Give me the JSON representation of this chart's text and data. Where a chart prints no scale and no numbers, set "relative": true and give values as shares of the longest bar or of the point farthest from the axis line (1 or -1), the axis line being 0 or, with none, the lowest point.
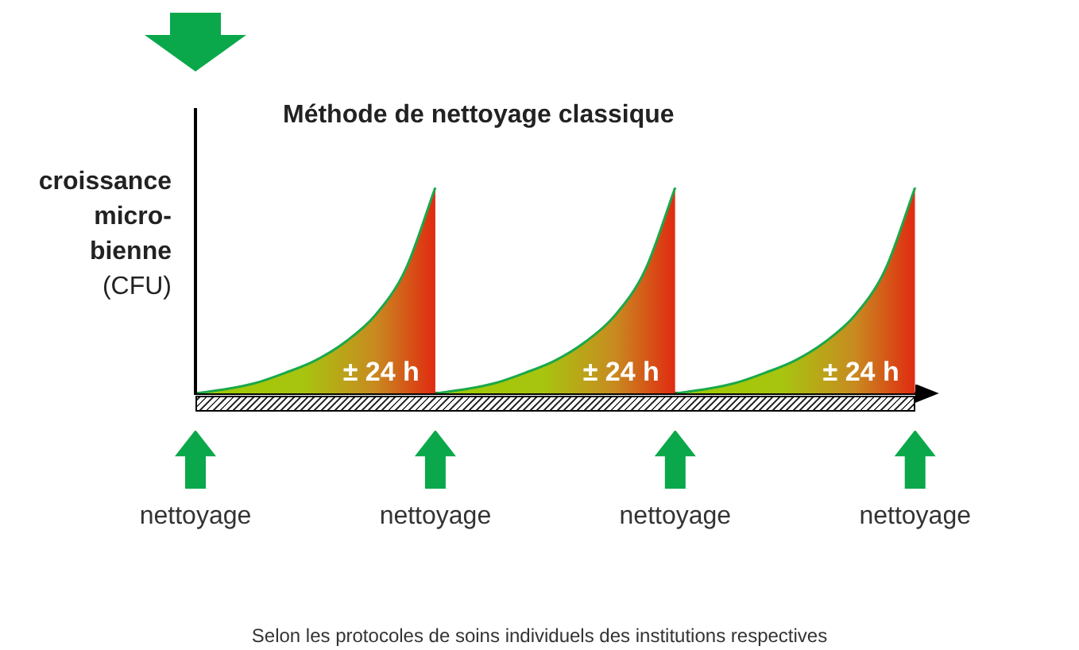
{
  "chart_data": {
    "type": "area",
    "title": "Méthode de nettoyage classique",
    "ylabel": "croissance micro-bienne (CFU)",
    "relative": true,
    "categories": [
      "nettoyage",
      null,
      null,
      null,
      null,
      null,
      null,
      null,
      "nettoyage",
      null,
      null,
      null,
      null,
      null,
      null,
      null,
      "nettoyage",
      null,
      null,
      null,
      null,
      null,
      null,
      null,
      "nettoyage"
    ],
    "series": [
      {
        "color": "#1aa84a",
        "values": [
          0,
          0.02,
          0.05,
          0.1,
          0.16,
          0.25,
          0.38,
          0.6,
          1,
          null,
          null,
          null,
          null,
          null,
          null,
          null,
          null,
          null,
          null,
          null,
          null,
          null,
          null,
          null,
          null
        ]
      },
      {
        "color": "#1aa84a",
        "values": [
          null,
          null,
          null,
          null,
          null,
          null,
          null,
          null,
          0,
          0.02,
          0.05,
          0.1,
          0.16,
          0.25,
          0.38,
          0.6,
          1,
          null,
          null,
          null,
          null,
          null,
          null,
          null,
          null
        ]
      },
      {
        "color": "#1aa84a",
        "values": [
          null,
          null,
          null,
          null,
          null,
          null,
          null,
          null,
          null,
          null,
          null,
          null,
          null,
          null,
          null,
          null,
          0,
          0.02,
          0.05,
          0.1,
          0.16,
          0.25,
          0.38,
          0.6,
          1
        ]
      }
    ],
    "annotations": [
      "± 24 h",
      "± 24 h",
      "± 24 h",
      "Selon les protocoles de soins individuels des institutions respectives"
    ],
    "legend": false,
    "grid": false
  }
}
